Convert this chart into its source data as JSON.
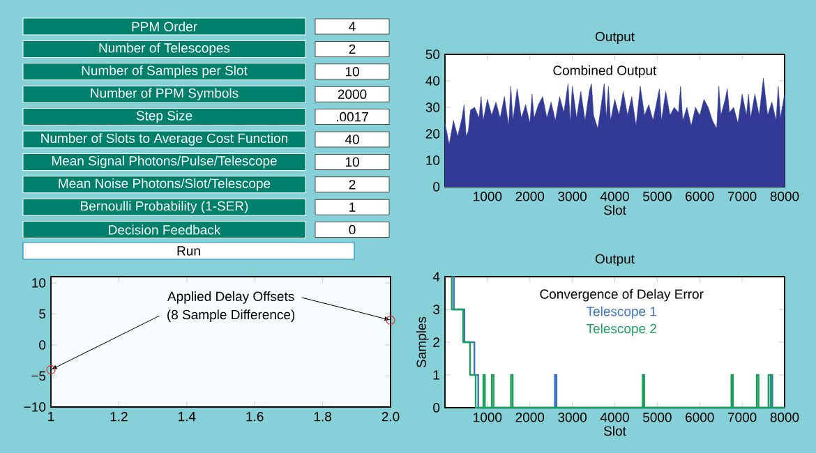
{
  "chart_data": [
    {
      "type": "other",
      "color": "#00806a",
      "categories": [
        "PPM Order",
        "Number of Telescopes",
        "Number of Samples per Slot",
        "Number of PPM Symbols",
        "Step Size",
        "Number of Slots to Average Cost Function",
        "Mean Signal Photons/Pulse/Telescope",
        "Mean Noise Photons/Slot/Telescope",
        "Bernoulli Probability (1-SER)",
        "Decision Feedback"
      ],
      "value_labels": [
        "4",
        "2",
        "10",
        "2000",
        ".0017",
        "40",
        "10",
        "2",
        "1",
        "0"
      ],
      "annotations": [
        "Run"
      ]
    },
    {
      "type": "area",
      "title": "Output",
      "xlabel": "Slot",
      "annotations": [
        "Combined Output"
      ],
      "color": "#333a96",
      "xlim": [
        0,
        8000
      ],
      "ylim": [
        0,
        50
      ],
      "xticks": [
        1000,
        2000,
        3000,
        4000,
        5000,
        6000,
        7000,
        8000
      ],
      "yticks": [
        0,
        10,
        20,
        30,
        40,
        50
      ],
      "x": [
        0,
        100,
        200,
        300,
        400,
        450,
        500,
        550,
        600,
        700,
        800,
        850,
        900,
        1000,
        1100,
        1200,
        1300,
        1400,
        1500,
        1550,
        1600,
        1700,
        1800,
        1900,
        2000,
        2050,
        2100,
        2200,
        2300,
        2400,
        2500,
        2600,
        2700,
        2800,
        2900,
        2950,
        3000,
        3100,
        3200,
        3300,
        3400,
        3450,
        3500,
        3600,
        3700,
        3750,
        3800,
        3850,
        3900,
        4000,
        4100,
        4200,
        4300,
        4400,
        4500,
        4600,
        4700,
        4800,
        4900,
        5050,
        5100,
        5200,
        5300,
        5400,
        5500,
        5550,
        5600,
        5700,
        5800,
        5900,
        6000,
        6100,
        6200,
        6300,
        6400,
        6450,
        6500,
        6600,
        6650,
        6700,
        6800,
        6900,
        7000,
        7100,
        7150,
        7200,
        7300,
        7400,
        7500,
        7600,
        7700,
        7800,
        7850,
        7900,
        8000
      ],
      "values": [
        24,
        16,
        25,
        19,
        26,
        31,
        19,
        21,
        29,
        30,
        26,
        34,
        25,
        33,
        27,
        32,
        26,
        34,
        23,
        38,
        25,
        37,
        26,
        31,
        24,
        35,
        26,
        31,
        34,
        26,
        32,
        25,
        34,
        28,
        39,
        24,
        38,
        26,
        36,
        25,
        36,
        39,
        27,
        22,
        33,
        39,
        26,
        38,
        25,
        33,
        27,
        36,
        27,
        34,
        23,
        38,
        27,
        31,
        25,
        37,
        25,
        36,
        27,
        30,
        28,
        38,
        25,
        30,
        23,
        30,
        27,
        33,
        30,
        25,
        22,
        38,
        27,
        33,
        37,
        28,
        30,
        24,
        35,
        27,
        35,
        26,
        35,
        27,
        41,
        27,
        32,
        25,
        38,
        26,
        35
      ]
    },
    {
      "type": "scatter",
      "annotations": [
        {
          "text": "Applied Delay Offsets",
          "x": 2,
          "y": 4
        },
        {
          "text": "(8 Sample Difference)",
          "x": 1,
          "y": -4
        }
      ],
      "color": "#e03030",
      "marker": "circle",
      "xlim": [
        1,
        2
      ],
      "ylim": [
        -10,
        11
      ],
      "xticks": [
        1,
        1.2,
        1.4,
        1.6,
        1.8,
        {
          "value": 2,
          "label": "2.0"
        }
      ],
      "yticks": [
        {
          "value": -10,
          "label": "−10"
        },
        {
          "value": -5,
          "label": "−5"
        },
        0,
        5,
        10
      ],
      "x": [
        1,
        2
      ],
      "values": [
        -4,
        4
      ]
    },
    {
      "type": "step",
      "title": "Output",
      "xlabel": "Slot",
      "ylabel": "Samples",
      "legend_title": "Convergence of Delay Error",
      "legend": "top",
      "xlim": [
        0,
        8000
      ],
      "ylim": [
        0,
        4
      ],
      "xticks": [
        1000,
        2000,
        3000,
        4000,
        5000,
        6000,
        7000,
        8000
      ],
      "yticks": [
        0,
        1,
        2,
        3,
        4
      ],
      "series": [
        {
          "name": "Telescope 1",
          "color": "#3a75c4",
          "x": [
            205,
            211,
            458,
            693,
            783,
            2590,
            2627,
            7669,
            7711,
            8000
          ],
          "values": [
            4,
            3,
            2,
            1,
            0,
            1,
            0,
            1,
            0,
            0
          ]
        },
        {
          "name": "Telescope 2",
          "color": "#1aa05a",
          "x": [
            157,
            160,
            428,
            590,
            723,
            904,
            940,
            1102,
            1145,
            1554,
            1596,
            4657,
            4693,
            6747,
            6783,
            7343,
            7386,
            7620,
            7680,
            8000
          ],
          "values": [
            4,
            3,
            2,
            1,
            0,
            1,
            0,
            1,
            0,
            1,
            0,
            1,
            0,
            1,
            0,
            1,
            0,
            1,
            0,
            0
          ]
        }
      ]
    }
  ]
}
